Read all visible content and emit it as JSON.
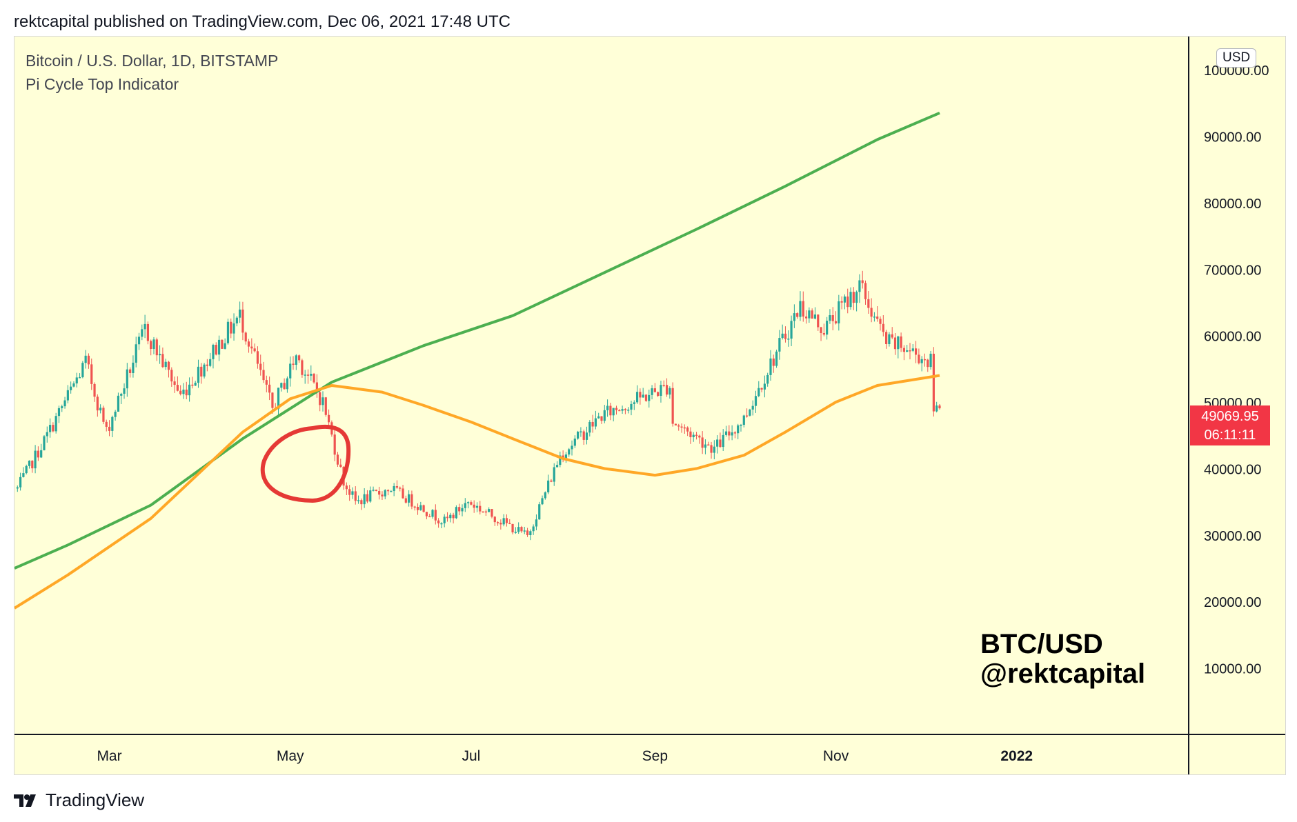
{
  "header": {
    "published_line": "rektcapital published on TradingView.com, Dec 06, 2021 17:48 UTC"
  },
  "legend": {
    "title": "Bitcoin / U.S. Dollar, 1D, BITSTAMP",
    "indicator": "Pi Cycle Top Indicator"
  },
  "currency_badge": "USD",
  "last_price": {
    "price": "49069.95",
    "countdown": "06:11:11",
    "color": "#f23645"
  },
  "watermark": {
    "line1": "BTC/USD",
    "line2": "@rektcapital"
  },
  "footer": {
    "brand": "TradingView",
    "logo_icon": "tradingview-logo-icon"
  },
  "colors": {
    "background": "#ffffd8",
    "up_candle": "#26a69a",
    "down_candle": "#ef5350",
    "long_ma": "#4caf50",
    "short_ma": "#ffa726",
    "annotation": "#e53935"
  },
  "chart_data": {
    "type": "candlestick",
    "symbol": "BTCUSD",
    "interval": "1D",
    "y_tick_labels": [
      "10000.00",
      "20000.00",
      "30000.00",
      "40000.00",
      "50000.00",
      "60000.00",
      "70000.00",
      "80000.00",
      "90000.00",
      "100000.00"
    ],
    "x_tick_labels": [
      "Mar",
      "May",
      "Jul",
      "Sep",
      "Nov",
      "2022"
    ],
    "ylim": [
      0,
      105000
    ],
    "xlim": [
      "2021-01-28",
      "2022-02-28"
    ],
    "price_anchors": {
      "dates": [
        "2021-01-29",
        "2021-02-08",
        "2021-02-21",
        "2021-02-28",
        "2021-03-13",
        "2021-03-25",
        "2021-04-14",
        "2021-04-25",
        "2021-05-03",
        "2021-05-12",
        "2021-05-19",
        "2021-05-23",
        "2021-06-04",
        "2021-06-22",
        "2021-06-30",
        "2021-07-20",
        "2021-07-31",
        "2021-08-14",
        "2021-08-24",
        "2021-09-06",
        "2021-09-07",
        "2021-09-21",
        "2021-10-01",
        "2021-10-08",
        "2021-10-20",
        "2021-10-28",
        "2021-11-09",
        "2021-11-18",
        "2021-11-25",
        "2021-12-03",
        "2021-12-04",
        "2021-12-06"
      ],
      "close": [
        37000,
        45000,
        56000,
        45500,
        61000,
        51000,
        63000,
        49000,
        57000,
        50000,
        38000,
        35000,
        37000,
        32000,
        35000,
        29800,
        42000,
        48000,
        50000,
        52500,
        47000,
        43000,
        47500,
        54000,
        64500,
        61000,
        67500,
        59000,
        58000,
        56000,
        49000,
        49070
      ]
    },
    "pi_cycle_top": {
      "series": [
        {
          "type": "line",
          "color": "#4caf50",
          "dates": [
            "2021-01-28",
            "2021-02-15",
            "2021-03-15",
            "2021-04-15",
            "2021-05-15",
            "2021-06-15",
            "2021-07-15",
            "2021-08-15",
            "2021-09-15",
            "2021-10-15",
            "2021-11-15",
            "2021-12-06"
          ],
          "values": [
            25000,
            28500,
            34500,
            44500,
            53000,
            58500,
            63000,
            69500,
            76000,
            82500,
            89500,
            93500
          ]
        },
        {
          "type": "line",
          "color": "#ffa726",
          "dates": [
            "2021-01-28",
            "2021-02-15",
            "2021-03-15",
            "2021-04-15",
            "2021-05-01",
            "2021-05-15",
            "2021-06-01",
            "2021-06-15",
            "2021-07-01",
            "2021-07-15",
            "2021-08-01",
            "2021-08-15",
            "2021-09-01",
            "2021-09-15",
            "2021-10-01",
            "2021-10-15",
            "2021-11-01",
            "2021-11-15",
            "2021-12-06"
          ],
          "values": [
            19000,
            24000,
            32500,
            45500,
            50500,
            52500,
            51500,
            49500,
            47000,
            44500,
            41500,
            40000,
            39000,
            40000,
            42000,
            45500,
            50000,
            52500,
            54000
          ]
        }
      ]
    }
  }
}
